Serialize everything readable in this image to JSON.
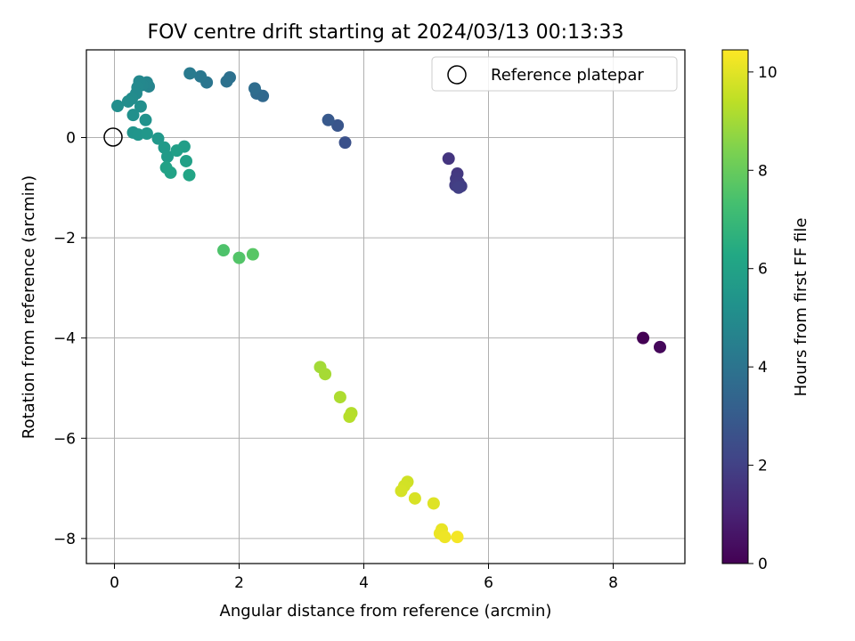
{
  "chart_data": {
    "type": "scatter",
    "title": "FOV centre drift starting at 2024/03/13 00:13:33",
    "xlabel": "Angular distance from reference (arcmin)",
    "ylabel": "Rotation from reference (arcmin)",
    "xlim": [
      -0.45,
      9.15
    ],
    "ylim": [
      -8.5,
      1.75
    ],
    "xticks": [
      0,
      2,
      4,
      6,
      8
    ],
    "xtick_labels": [
      "0",
      "2",
      "4",
      "6",
      "8"
    ],
    "yticks": [
      0,
      -2,
      -4,
      -6,
      -8
    ],
    "ytick_labels": [
      "0",
      "−2",
      "−4",
      "−6",
      "−8"
    ],
    "grid": true,
    "legend": {
      "position": "top-right",
      "entries": [
        "Reference platepar"
      ]
    },
    "reference_point": {
      "x": 0,
      "y": 0
    },
    "colorbar": {
      "label": "Hours from first FF file",
      "colormap": "viridis",
      "range": [
        0,
        10.45
      ],
      "ticks": [
        0,
        2,
        4,
        6,
        8,
        10
      ],
      "tick_labels": [
        "0",
        "2",
        "4",
        "6",
        "8",
        "10"
      ]
    },
    "series": [
      {
        "points": [
          {
            "x": 8.48,
            "y": -4.0,
            "hours": 0.0
          },
          {
            "x": 8.75,
            "y": -4.18,
            "hours": 0.2
          },
          {
            "x": 5.36,
            "y": -0.42,
            "hours": 1.6
          },
          {
            "x": 5.5,
            "y": -0.72,
            "hours": 1.7
          },
          {
            "x": 5.48,
            "y": -0.82,
            "hours": 1.75
          },
          {
            "x": 5.52,
            "y": -0.9,
            "hours": 1.8
          },
          {
            "x": 5.47,
            "y": -0.95,
            "hours": 1.85
          },
          {
            "x": 5.56,
            "y": -0.97,
            "hours": 1.9
          },
          {
            "x": 5.52,
            "y": -1.0,
            "hours": 1.95
          },
          {
            "x": 3.7,
            "y": -0.1,
            "hours": 2.6
          },
          {
            "x": 3.58,
            "y": 0.24,
            "hours": 2.75
          },
          {
            "x": 3.43,
            "y": 0.35,
            "hours": 2.9
          },
          {
            "x": 2.38,
            "y": 0.83,
            "hours": 3.5
          },
          {
            "x": 2.28,
            "y": 0.88,
            "hours": 3.6
          },
          {
            "x": 2.25,
            "y": 0.98,
            "hours": 3.7
          },
          {
            "x": 1.85,
            "y": 1.2,
            "hours": 3.85
          },
          {
            "x": 1.8,
            "y": 1.12,
            "hours": 3.9
          },
          {
            "x": 1.48,
            "y": 1.1,
            "hours": 4.05
          },
          {
            "x": 1.38,
            "y": 1.22,
            "hours": 4.15
          },
          {
            "x": 1.21,
            "y": 1.28,
            "hours": 4.25
          },
          {
            "x": 0.55,
            "y": 1.02,
            "hours": 4.7
          },
          {
            "x": 0.52,
            "y": 1.1,
            "hours": 4.75
          },
          {
            "x": 0.45,
            "y": 1.05,
            "hours": 4.8
          },
          {
            "x": 0.4,
            "y": 1.12,
            "hours": 4.85
          },
          {
            "x": 0.37,
            "y": 1.0,
            "hours": 4.9
          },
          {
            "x": 0.35,
            "y": 0.88,
            "hours": 4.95
          },
          {
            "x": 0.28,
            "y": 0.78,
            "hours": 5.0
          },
          {
            "x": 0.22,
            "y": 0.72,
            "hours": 5.05
          },
          {
            "x": 0.05,
            "y": 0.63,
            "hours": 5.1
          },
          {
            "x": 0.42,
            "y": 0.62,
            "hours": 5.15
          },
          {
            "x": 0.3,
            "y": 0.45,
            "hours": 5.2
          },
          {
            "x": 0.5,
            "y": 0.35,
            "hours": 5.25
          },
          {
            "x": 0.3,
            "y": 0.1,
            "hours": 5.35
          },
          {
            "x": 0.38,
            "y": 0.06,
            "hours": 5.4
          },
          {
            "x": 0.52,
            "y": 0.08,
            "hours": 5.5
          },
          {
            "x": 0.7,
            "y": -0.02,
            "hours": 5.55
          },
          {
            "x": 0.8,
            "y": -0.2,
            "hours": 5.65
          },
          {
            "x": 0.85,
            "y": -0.38,
            "hours": 5.7
          },
          {
            "x": 1.12,
            "y": -0.18,
            "hours": 5.8
          },
          {
            "x": 1.0,
            "y": -0.26,
            "hours": 5.85
          },
          {
            "x": 1.15,
            "y": -0.47,
            "hours": 5.9
          },
          {
            "x": 0.83,
            "y": -0.6,
            "hours": 5.95
          },
          {
            "x": 0.9,
            "y": -0.7,
            "hours": 6.0
          },
          {
            "x": 1.2,
            "y": -0.75,
            "hours": 6.1
          },
          {
            "x": 1.75,
            "y": -2.25,
            "hours": 7.5
          },
          {
            "x": 2.0,
            "y": -2.4,
            "hours": 7.6
          },
          {
            "x": 2.22,
            "y": -2.33,
            "hours": 7.7
          },
          {
            "x": 3.3,
            "y": -4.58,
            "hours": 9.0
          },
          {
            "x": 3.38,
            "y": -4.72,
            "hours": 9.05
          },
          {
            "x": 3.62,
            "y": -5.18,
            "hours": 9.15
          },
          {
            "x": 3.8,
            "y": -5.5,
            "hours": 9.25
          },
          {
            "x": 3.77,
            "y": -5.57,
            "hours": 9.3
          },
          {
            "x": 4.7,
            "y": -6.87,
            "hours": 9.7
          },
          {
            "x": 4.65,
            "y": -6.95,
            "hours": 9.75
          },
          {
            "x": 4.6,
            "y": -7.05,
            "hours": 9.8
          },
          {
            "x": 4.82,
            "y": -7.2,
            "hours": 9.85
          },
          {
            "x": 5.12,
            "y": -7.3,
            "hours": 9.95
          },
          {
            "x": 5.25,
            "y": -7.82,
            "hours": 10.1
          },
          {
            "x": 5.22,
            "y": -7.9,
            "hours": 10.15
          },
          {
            "x": 5.3,
            "y": -7.97,
            "hours": 10.2
          },
          {
            "x": 5.5,
            "y": -7.97,
            "hours": 10.3
          }
        ]
      }
    ]
  }
}
